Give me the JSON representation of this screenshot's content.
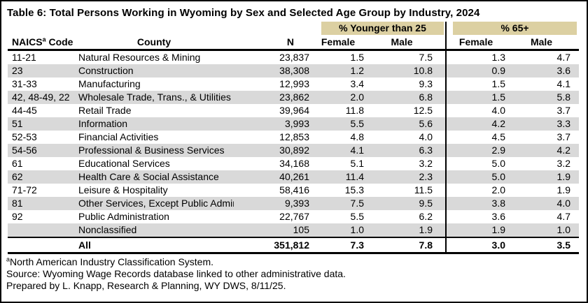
{
  "colors": {
    "band_background": "#dcd0a2",
    "stripe_background": "#d9d9d9",
    "border": "#000000",
    "text": "#000000"
  },
  "chart_data": {
    "type": "table",
    "title": "Table 6: Total Persons Working in Wyoming by Sex and Selected Age Group by Industry, 2024",
    "group_headers": [
      "% Younger than 25",
      "% 65+"
    ],
    "col_headers": {
      "code_pre": "NAICS",
      "code_sup": "a",
      "code_post": " Code",
      "county": "County",
      "n": "N",
      "female_u25": "Female",
      "male_u25": "Male",
      "female_65": "Female",
      "male_65": "Male"
    },
    "rows": [
      {
        "code": "11-21",
        "industry": "Natural Resources & Mining",
        "n": "23,837",
        "f25": "1.5",
        "m25": "7.5",
        "f65": "1.3",
        "m65": "4.7"
      },
      {
        "code": "23",
        "industry": "Construction",
        "n": "38,308",
        "f25": "1.2",
        "m25": "10.8",
        "f65": "0.9",
        "m65": "3.6"
      },
      {
        "code": "31-33",
        "industry": "Manufacturing",
        "n": "12,993",
        "f25": "3.4",
        "m25": "9.3",
        "f65": "1.5",
        "m65": "4.1"
      },
      {
        "code": "42, 48-49, 22",
        "industry": "Wholesale Trade, Trans., & Utilities",
        "n": "23,862",
        "f25": "2.0",
        "m25": "6.8",
        "f65": "1.5",
        "m65": "5.8"
      },
      {
        "code": "44-45",
        "industry": "Retail Trade",
        "n": "39,964",
        "f25": "11.8",
        "m25": "12.5",
        "f65": "4.0",
        "m65": "3.7"
      },
      {
        "code": "51",
        "industry": "Information",
        "n": "3,993",
        "f25": "5.5",
        "m25": "5.6",
        "f65": "4.2",
        "m65": "3.3"
      },
      {
        "code": "52-53",
        "industry": "Financial Activities",
        "n": "12,853",
        "f25": "4.8",
        "m25": "4.0",
        "f65": "4.5",
        "m65": "3.7"
      },
      {
        "code": "54-56",
        "industry": "Professional & Business Services",
        "n": "30,892",
        "f25": "4.1",
        "m25": "6.3",
        "f65": "2.9",
        "m65": "4.2"
      },
      {
        "code": "61",
        "industry": "Educational Services",
        "n": "34,168",
        "f25": "5.1",
        "m25": "3.2",
        "f65": "5.0",
        "m65": "3.2"
      },
      {
        "code": "62",
        "industry": "Health Care & Social Assistance",
        "n": "40,261",
        "f25": "11.4",
        "m25": "2.3",
        "f65": "5.0",
        "m65": "1.9"
      },
      {
        "code": "71-72",
        "industry": "Leisure & Hospitality",
        "n": "58,416",
        "f25": "15.3",
        "m25": "11.5",
        "f65": "2.0",
        "m65": "1.9"
      },
      {
        "code": "81",
        "industry": "Other Services, Except Public Admin.",
        "n": "9,393",
        "f25": "7.5",
        "m25": "9.5",
        "f65": "3.8",
        "m65": "4.0"
      },
      {
        "code": "92",
        "industry": "Public Administration",
        "n": "22,767",
        "f25": "5.5",
        "m25": "6.2",
        "f65": "3.6",
        "m65": "4.7"
      },
      {
        "code": "",
        "industry": "Nonclassified",
        "n": "105",
        "f25": "1.0",
        "m25": "1.9",
        "f65": "1.9",
        "m65": "1.0"
      }
    ],
    "total": {
      "code": "",
      "label": "All",
      "n": "351,812",
      "f25": "7.3",
      "m25": "7.8",
      "f65": "3.0",
      "m65": "3.5"
    },
    "footnotes": {
      "note_sup": "a",
      "note": "North American Industry Classification System.",
      "source": "Source: Wyoming Wage Records database linked to other administrative data.",
      "prepared": "Prepared by L. Knapp, Research & Planning, WY DWS, 8/11/25."
    }
  }
}
